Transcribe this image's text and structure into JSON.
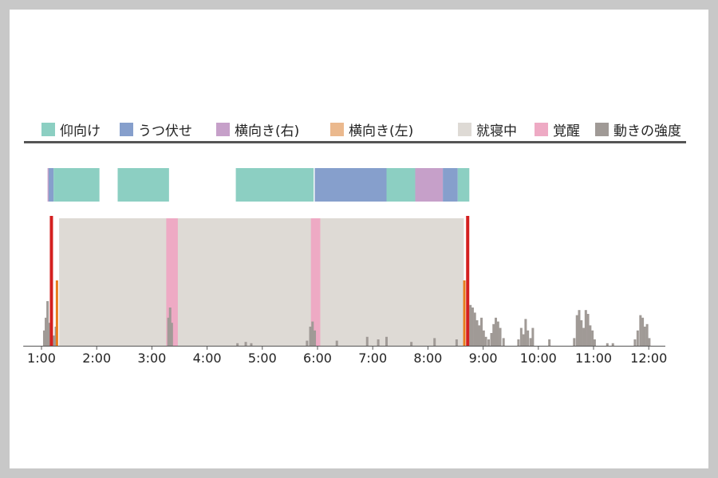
{
  "legend": [
    {
      "label": "仰向け",
      "color": "#8ccfc2"
    },
    {
      "label": "うつ伏せ",
      "color": "#869fcc"
    },
    {
      "label": "横向き(右)",
      "color": "#c6a0c9"
    },
    {
      "label": "横向き(左)",
      "color": "#ebb98e"
    },
    {
      "label": "就寝中",
      "color": "#dedad5"
    },
    {
      "label": "覚醒",
      "color": "#eeaac4"
    },
    {
      "label": "動きの強度",
      "color": "#a09a96"
    }
  ],
  "colors": {
    "supine": "#8ccfc2",
    "prone": "#869fcc",
    "side_right": "#c6a0c9",
    "side_left": "#ebb98e",
    "sleeping": "#dedad5",
    "awake": "#eeaac4",
    "movement": "#a09a96",
    "bed_marker": "#d42020",
    "sleep_marker": "#e87c1c"
  },
  "chart_data": {
    "type": "bar",
    "x_unit": "hours",
    "xlim": [
      0.67,
      12.3
    ],
    "ylim": [
      0,
      1
    ],
    "tick_labels": [
      "1:00",
      "2:00",
      "3:00",
      "4:00",
      "5:00",
      "6:00",
      "7:00",
      "8:00",
      "9:00",
      "10:00",
      "11:00",
      "12:00"
    ],
    "tick_values": [
      1,
      2,
      3,
      4,
      5,
      6,
      7,
      8,
      9,
      10,
      11,
      12
    ],
    "posture": [
      {
        "start": 1.11,
        "end": 1.13,
        "category": "横向き(右)"
      },
      {
        "start": 1.13,
        "end": 1.22,
        "category": "うつ伏せ"
      },
      {
        "start": 1.22,
        "end": 2.05,
        "category": "仰向け"
      },
      {
        "start": 2.38,
        "end": 3.31,
        "category": "仰向け"
      },
      {
        "start": 4.52,
        "end": 5.93,
        "category": "仰向け"
      },
      {
        "start": 5.95,
        "end": 7.25,
        "category": "うつ伏せ"
      },
      {
        "start": 7.25,
        "end": 7.77,
        "category": "仰向け"
      },
      {
        "start": 7.77,
        "end": 8.27,
        "category": "横向き(右)"
      },
      {
        "start": 8.27,
        "end": 8.54,
        "category": "うつ伏せ"
      },
      {
        "start": 8.54,
        "end": 8.75,
        "category": "仰向け"
      }
    ],
    "sleeping": {
      "start": 1.32,
      "end": 8.65
    },
    "awake": [
      {
        "start": 3.26,
        "end": 3.47
      },
      {
        "start": 5.88,
        "end": 6.05
      }
    ],
    "markers": [
      {
        "x": 1.18,
        "kind": "bed"
      },
      {
        "x": 1.28,
        "kind": "sleep"
      },
      {
        "x": 8.66,
        "kind": "sleep"
      },
      {
        "x": 8.72,
        "kind": "bed"
      }
    ],
    "movement": [
      {
        "x": 1.05,
        "value": 0.12
      },
      {
        "x": 1.08,
        "value": 0.22
      },
      {
        "x": 1.11,
        "value": 0.35
      },
      {
        "x": 1.14,
        "value": 0.18
      },
      {
        "x": 1.23,
        "value": 0.08
      },
      {
        "x": 1.26,
        "value": 0.15
      },
      {
        "x": 3.3,
        "value": 0.22
      },
      {
        "x": 3.33,
        "value": 0.3
      },
      {
        "x": 3.36,
        "value": 0.18
      },
      {
        "x": 4.55,
        "value": 0.02
      },
      {
        "x": 4.7,
        "value": 0.03
      },
      {
        "x": 4.8,
        "value": 0.02
      },
      {
        "x": 5.81,
        "value": 0.04
      },
      {
        "x": 5.87,
        "value": 0.15
      },
      {
        "x": 5.91,
        "value": 0.19
      },
      {
        "x": 5.95,
        "value": 0.12
      },
      {
        "x": 6.35,
        "value": 0.04
      },
      {
        "x": 6.9,
        "value": 0.07
      },
      {
        "x": 7.1,
        "value": 0.05
      },
      {
        "x": 7.25,
        "value": 0.07
      },
      {
        "x": 7.7,
        "value": 0.03
      },
      {
        "x": 8.12,
        "value": 0.06
      },
      {
        "x": 8.52,
        "value": 0.05
      },
      {
        "x": 8.77,
        "value": 0.32
      },
      {
        "x": 8.81,
        "value": 0.3
      },
      {
        "x": 8.85,
        "value": 0.26
      },
      {
        "x": 8.89,
        "value": 0.2
      },
      {
        "x": 8.93,
        "value": 0.16
      },
      {
        "x": 8.97,
        "value": 0.22
      },
      {
        "x": 9.01,
        "value": 0.12
      },
      {
        "x": 9.05,
        "value": 0.07
      },
      {
        "x": 9.1,
        "value": 0.05
      },
      {
        "x": 9.15,
        "value": 0.1
      },
      {
        "x": 9.19,
        "value": 0.17
      },
      {
        "x": 9.23,
        "value": 0.22
      },
      {
        "x": 9.27,
        "value": 0.19
      },
      {
        "x": 9.31,
        "value": 0.14
      },
      {
        "x": 9.37,
        "value": 0.06
      },
      {
        "x": 9.64,
        "value": 0.05
      },
      {
        "x": 9.69,
        "value": 0.14
      },
      {
        "x": 9.73,
        "value": 0.09
      },
      {
        "x": 9.77,
        "value": 0.21
      },
      {
        "x": 9.81,
        "value": 0.12
      },
      {
        "x": 9.86,
        "value": 0.06
      },
      {
        "x": 9.9,
        "value": 0.14
      },
      {
        "x": 10.2,
        "value": 0.05
      },
      {
        "x": 10.65,
        "value": 0.06
      },
      {
        "x": 10.7,
        "value": 0.24
      },
      {
        "x": 10.74,
        "value": 0.28
      },
      {
        "x": 10.78,
        "value": 0.2
      },
      {
        "x": 10.82,
        "value": 0.14
      },
      {
        "x": 10.86,
        "value": 0.28
      },
      {
        "x": 10.9,
        "value": 0.25
      },
      {
        "x": 10.94,
        "value": 0.16
      },
      {
        "x": 10.98,
        "value": 0.12
      },
      {
        "x": 11.02,
        "value": 0.05
      },
      {
        "x": 11.25,
        "value": 0.02
      },
      {
        "x": 11.35,
        "value": 0.02
      },
      {
        "x": 11.75,
        "value": 0.05
      },
      {
        "x": 11.8,
        "value": 0.12
      },
      {
        "x": 11.85,
        "value": 0.24
      },
      {
        "x": 11.89,
        "value": 0.22
      },
      {
        "x": 11.93,
        "value": 0.15
      },
      {
        "x": 11.97,
        "value": 0.17
      },
      {
        "x": 12.01,
        "value": 0.06
      }
    ]
  }
}
